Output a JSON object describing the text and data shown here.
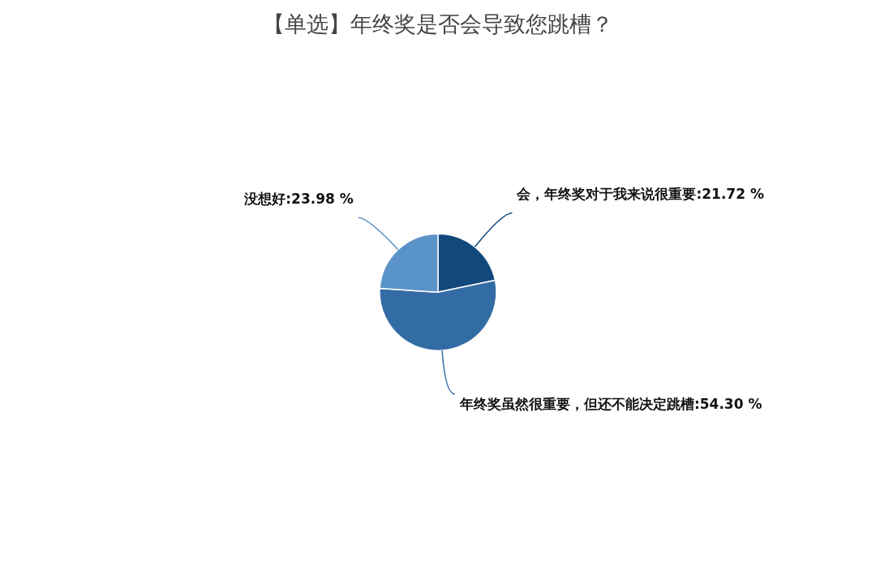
{
  "chart_data": {
    "type": "pie",
    "title": "【单选】年终奖是否会导致您跳槽？",
    "categories": [
      "会，年终奖对于我来说很重要",
      "年终奖虽然很重要，但还不能决定跳槽",
      "没想好"
    ],
    "values": [
      21.72,
      54.3,
      23.98
    ],
    "colors": [
      "#12487c",
      "#336ca4",
      "#5a93c8"
    ],
    "value_labels": [
      ":21.72 %",
      ":54.30 %",
      ":23.98 %"
    ],
    "legend": false
  }
}
